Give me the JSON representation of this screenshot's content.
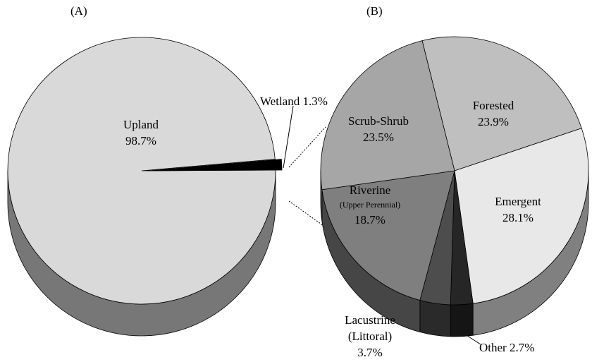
{
  "chart_data": [
    {
      "type": "pie",
      "title": "(A)",
      "categories": [
        "Upland",
        "Wetland"
      ],
      "values": [
        98.7,
        1.3
      ],
      "value_labels": [
        "98.7%",
        "1.3%"
      ],
      "colors": [
        "#d9d9d9",
        "#000000"
      ]
    },
    {
      "type": "pie",
      "title": "(B)",
      "categories": [
        "Forested",
        "Emergent",
        "Other",
        "Lacustrine\n(Littoral)",
        "Riverine\n(Upper Perennial)",
        "Scrub-Shrub"
      ],
      "values": [
        23.9,
        28.1,
        2.7,
        3.7,
        18.7,
        23.5
      ],
      "value_labels": [
        "23.9%",
        "28.1%",
        "2.7%",
        "3.7%",
        "18.7%",
        "23.5%"
      ],
      "colors": [
        "#bfbfbf",
        "#e8e8e8",
        "#262626",
        "#4d4d4d",
        "#7f7f7f",
        "#a6a6a6"
      ]
    }
  ]
}
